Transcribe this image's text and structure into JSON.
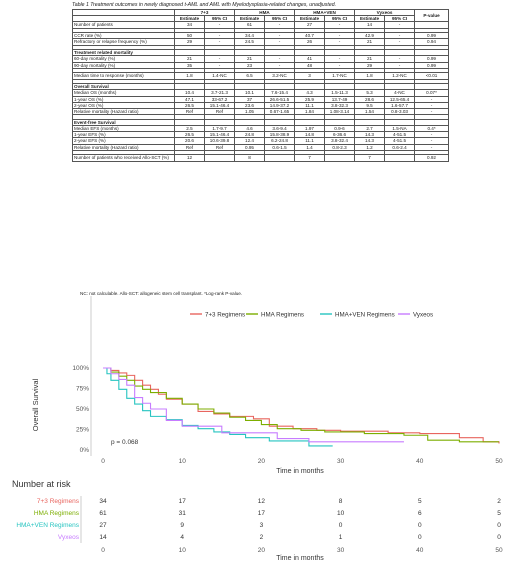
{
  "caption": "Table 1 Treatment outcomes in newly diagnosed t-AML and AML with Myelodysplasia-related changes, unadjusted.",
  "table": {
    "groups": [
      "7+3",
      "HMA",
      "HMA+VEN",
      "Vyxeos",
      "P-value"
    ],
    "subheaders": [
      "Estimate",
      "95% CI",
      "Estimate",
      "95% CI",
      "Estimate",
      "95% CI",
      "Estimate",
      "95% CI"
    ],
    "rows": [
      {
        "type": "data",
        "cells": [
          "Number of patients",
          "34",
          "-",
          "61",
          "-",
          "27",
          "-",
          "14",
          "-",
          ""
        ]
      },
      {
        "type": "spacer"
      },
      {
        "type": "data",
        "cells": [
          "CCR rate (%)",
          "50",
          "-",
          "34.4",
          "-",
          "40.7",
          "-",
          "42.9",
          "-",
          "0.99"
        ]
      },
      {
        "type": "data",
        "cells": [
          "Refractory or relapse frequency (%)",
          "29",
          "-",
          "24.5",
          "-",
          "26",
          "-",
          "21",
          "-",
          "0.94"
        ]
      },
      {
        "type": "spacer"
      },
      {
        "type": "section",
        "cells": [
          "Treatment related mortality"
        ]
      },
      {
        "type": "data",
        "cells": [
          "60-day mortality (%)",
          "21",
          "-",
          "21",
          "-",
          "41",
          "-",
          "21",
          "-",
          "0.99"
        ]
      },
      {
        "type": "data",
        "cells": [
          "90-day mortality (%)",
          "35",
          "-",
          "23",
          "-",
          "48",
          "-",
          "29",
          "-",
          "0.99"
        ]
      },
      {
        "type": "spacer"
      },
      {
        "type": "data",
        "cells": [
          "Median time to response (months)",
          "1.8",
          "1.4-NC",
          "6.5",
          "3.2-NC",
          "3",
          "1.7-NC",
          "1.8",
          "1.2-NC",
          "<0.01"
        ]
      },
      {
        "type": "spacer"
      },
      {
        "type": "section",
        "cells": [
          "Overall Survival"
        ]
      },
      {
        "type": "data",
        "cells": [
          "Median OS (months)",
          "10.4",
          "3.7-21.3",
          "10.1",
          "7.6-15.4",
          "4.3",
          "1.5-11.3",
          "5.3",
          "4-NC",
          "0.07*"
        ]
      },
      {
        "type": "data",
        "cells": [
          "1-year OS (%)",
          "47.1",
          "33-67.2",
          "37",
          "26.6-51.5",
          "25.9",
          "13.7-49",
          "28.6",
          "12.5-65.4",
          "-"
        ]
      },
      {
        "type": "data",
        "cells": [
          "2-year OS (%)",
          "26.5",
          "15.1-46.4",
          "23.6",
          "14.9-37.2",
          "11.1",
          "3.8-32.3",
          "9.5",
          "1.6-57.7",
          "-"
        ]
      },
      {
        "type": "data",
        "cells": [
          "Relative mortality (Hazard ratio)",
          "Ref",
          "Ref",
          "1.05",
          "0.67-1.65",
          "1.84",
          "1.08-3.14",
          "1.54",
          "0.8-3.03",
          "-"
        ]
      },
      {
        "type": "spacer"
      },
      {
        "type": "section",
        "cells": [
          "Event-free Survival"
        ]
      },
      {
        "type": "data",
        "cells": [
          "Median EFS (months)",
          "2.5",
          "1.7-9.7",
          "4.6",
          "3.6-9.4",
          "1.97",
          "0.9-6",
          "2.7",
          "1.5-NA",
          "0.4*"
        ]
      },
      {
        "type": "data",
        "cells": [
          "1-year EFS (%)",
          "26.5",
          "15.1-46.4",
          "24.8",
          "15.8-38.9",
          "14.8",
          "6-36.6",
          "14.3",
          "4-51.5",
          "-"
        ]
      },
      {
        "type": "data",
        "cells": [
          "2-year EFS (%)",
          "20.6",
          "10.6-39.8",
          "12.4",
          "6.2-24.8",
          "11.1",
          "3.8-32.4",
          "14.3",
          "4-51.5",
          "-"
        ]
      },
      {
        "type": "data",
        "cells": [
          "Relative mortality (Hazard ratio)",
          "Ref",
          "Ref",
          "0.95",
          "0.6-1.5",
          "1.4",
          "0.8-2.3",
          "1.2",
          "0.6-2.4",
          "-"
        ]
      },
      {
        "type": "spacer"
      },
      {
        "type": "data",
        "cells": [
          "Number of patients who received Allo-SCT (%)",
          "12",
          "",
          "8",
          "",
          "7",
          "",
          "7",
          "",
          "0.92"
        ]
      }
    ]
  },
  "footnote": "NC: not calculable. Allo-SCT: allogeneic stem cell transplant. *Log-rank P-value.",
  "chart_data": {
    "type": "line",
    "ylabel": "Overall Survival",
    "xlabel": "Time in months",
    "ylim": [
      0,
      1
    ],
    "xlim": [
      0,
      50
    ],
    "xticks": [
      0,
      10,
      20,
      30,
      40,
      50
    ],
    "yticks": [
      0,
      0.25,
      0.5,
      0.75,
      1.0
    ],
    "yticklabels": [
      "0%",
      "25%",
      "50%",
      "75%",
      "100%"
    ],
    "annotation": "p = 0.068",
    "legend_position": "top",
    "series": [
      {
        "name": "7+3 Regimens",
        "color": "#e8655f",
        "points": [
          [
            0,
            1
          ],
          [
            1,
            0.97
          ],
          [
            2,
            0.94
          ],
          [
            3,
            0.91
          ],
          [
            4,
            0.85
          ],
          [
            5,
            0.79
          ],
          [
            6,
            0.74
          ],
          [
            7,
            0.68
          ],
          [
            8,
            0.62
          ],
          [
            10,
            0.56
          ],
          [
            12,
            0.47
          ],
          [
            14,
            0.44
          ],
          [
            16,
            0.41
          ],
          [
            19,
            0.38
          ],
          [
            21,
            0.29
          ],
          [
            24,
            0.26
          ],
          [
            27,
            0.24
          ],
          [
            30,
            0.23
          ],
          [
            36,
            0.21
          ],
          [
            40,
            0.2
          ],
          [
            45,
            0.15
          ],
          [
            48,
            0.1
          ],
          [
            50,
            0.08
          ]
        ]
      },
      {
        "name": "HMA Regimens",
        "color": "#7cae00",
        "points": [
          [
            0,
            1
          ],
          [
            1,
            0.95
          ],
          [
            2,
            0.9
          ],
          [
            3,
            0.85
          ],
          [
            4,
            0.78
          ],
          [
            5,
            0.74
          ],
          [
            6,
            0.7
          ],
          [
            8,
            0.63
          ],
          [
            10,
            0.56
          ],
          [
            12,
            0.5
          ],
          [
            14,
            0.45
          ],
          [
            16,
            0.4
          ],
          [
            18,
            0.36
          ],
          [
            20,
            0.31
          ],
          [
            22,
            0.26
          ],
          [
            25,
            0.24
          ],
          [
            28,
            0.22
          ],
          [
            33,
            0.2
          ],
          [
            38,
            0.18
          ],
          [
            41,
            0.12
          ],
          [
            45,
            0.1
          ],
          [
            50,
            0.1
          ]
        ]
      },
      {
        "name": "HMA+VEN Regimens",
        "color": "#26c4c0",
        "points": [
          [
            0,
            1
          ],
          [
            0.5,
            0.93
          ],
          [
            1,
            0.85
          ],
          [
            2,
            0.74
          ],
          [
            3,
            0.63
          ],
          [
            4,
            0.56
          ],
          [
            5,
            0.48
          ],
          [
            6,
            0.41
          ],
          [
            8,
            0.37
          ],
          [
            10,
            0.3
          ],
          [
            12,
            0.26
          ],
          [
            14,
            0.22
          ],
          [
            16,
            0.19
          ],
          [
            18,
            0.15
          ],
          [
            21,
            0.11
          ],
          [
            26,
            0.05
          ],
          [
            29,
            0.05
          ]
        ]
      },
      {
        "name": "Vyxeos",
        "color": "#c77cff",
        "points": [
          [
            0,
            1
          ],
          [
            1,
            0.93
          ],
          [
            2,
            0.86
          ],
          [
            3,
            0.79
          ],
          [
            4,
            0.64
          ],
          [
            5,
            0.57
          ],
          [
            6,
            0.5
          ],
          [
            8,
            0.36
          ],
          [
            10,
            0.29
          ],
          [
            13,
            0.29
          ],
          [
            15,
            0.21
          ],
          [
            20,
            0.21
          ],
          [
            22,
            0.14
          ],
          [
            26,
            0.1
          ],
          [
            38,
            0.1
          ]
        ]
      }
    ]
  },
  "risk_table": {
    "title": "Number at risk",
    "xlabel": "Time in months",
    "times": [
      "0",
      "10",
      "20",
      "30",
      "40",
      "50"
    ],
    "rows": [
      {
        "label": "7+3 Regimens",
        "color": "#e8655f",
        "values": [
          "34",
          "17",
          "12",
          "8",
          "5",
          "2"
        ]
      },
      {
        "label": "HMA Regimens",
        "color": "#7cae00",
        "values": [
          "61",
          "31",
          "17",
          "10",
          "6",
          "5"
        ]
      },
      {
        "label": "HMA+VEN Regimens",
        "color": "#26c4c0",
        "values": [
          "27",
          "9",
          "3",
          "0",
          "0",
          "0"
        ]
      },
      {
        "label": "Vyxeos",
        "color": "#c77cff",
        "values": [
          "14",
          "4",
          "2",
          "1",
          "0",
          "0"
        ]
      }
    ]
  }
}
